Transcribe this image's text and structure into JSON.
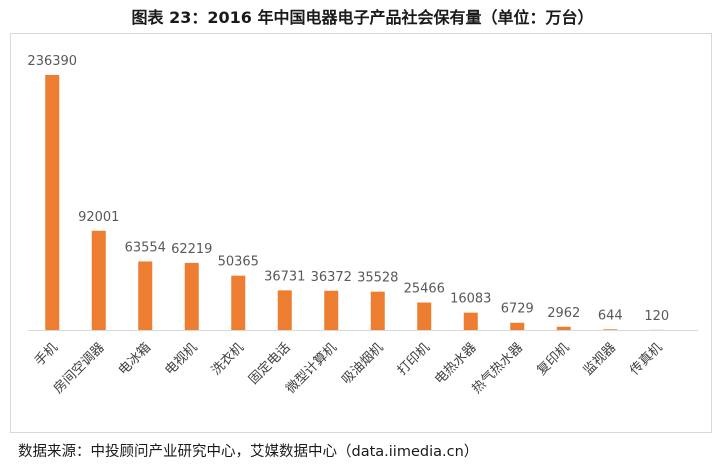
{
  "title": "图表 23：2016 年中国电器电子产品社会保有量（单位：万台）",
  "source": "数据来源：中投顾问产业研究中心，艾媒数据中心（data.iimedia.cn）",
  "colors": {
    "bar": "#ED7D31",
    "axis": "#d9d9d9",
    "label": "#595959"
  },
  "chart_data": {
    "type": "bar",
    "title": "图表 23：2016 年中国电器电子产品社会保有量（单位：万台）",
    "xlabel": "",
    "ylabel": "",
    "categories": [
      "手机",
      "房间空调器",
      "电冰箱",
      "电视机",
      "洗衣机",
      "固定电话",
      "微型计算机",
      "吸油烟机",
      "打印机",
      "电热水器",
      "热气热水器",
      "复印机",
      "监视器",
      "传真机"
    ],
    "values": [
      236390,
      92001,
      63554,
      62219,
      50365,
      36731,
      36372,
      35528,
      25466,
      16083,
      6729,
      2962,
      644,
      120
    ],
    "ylim": [
      0,
      236390
    ],
    "grid": false,
    "legend": "none",
    "data_labels": true
  }
}
